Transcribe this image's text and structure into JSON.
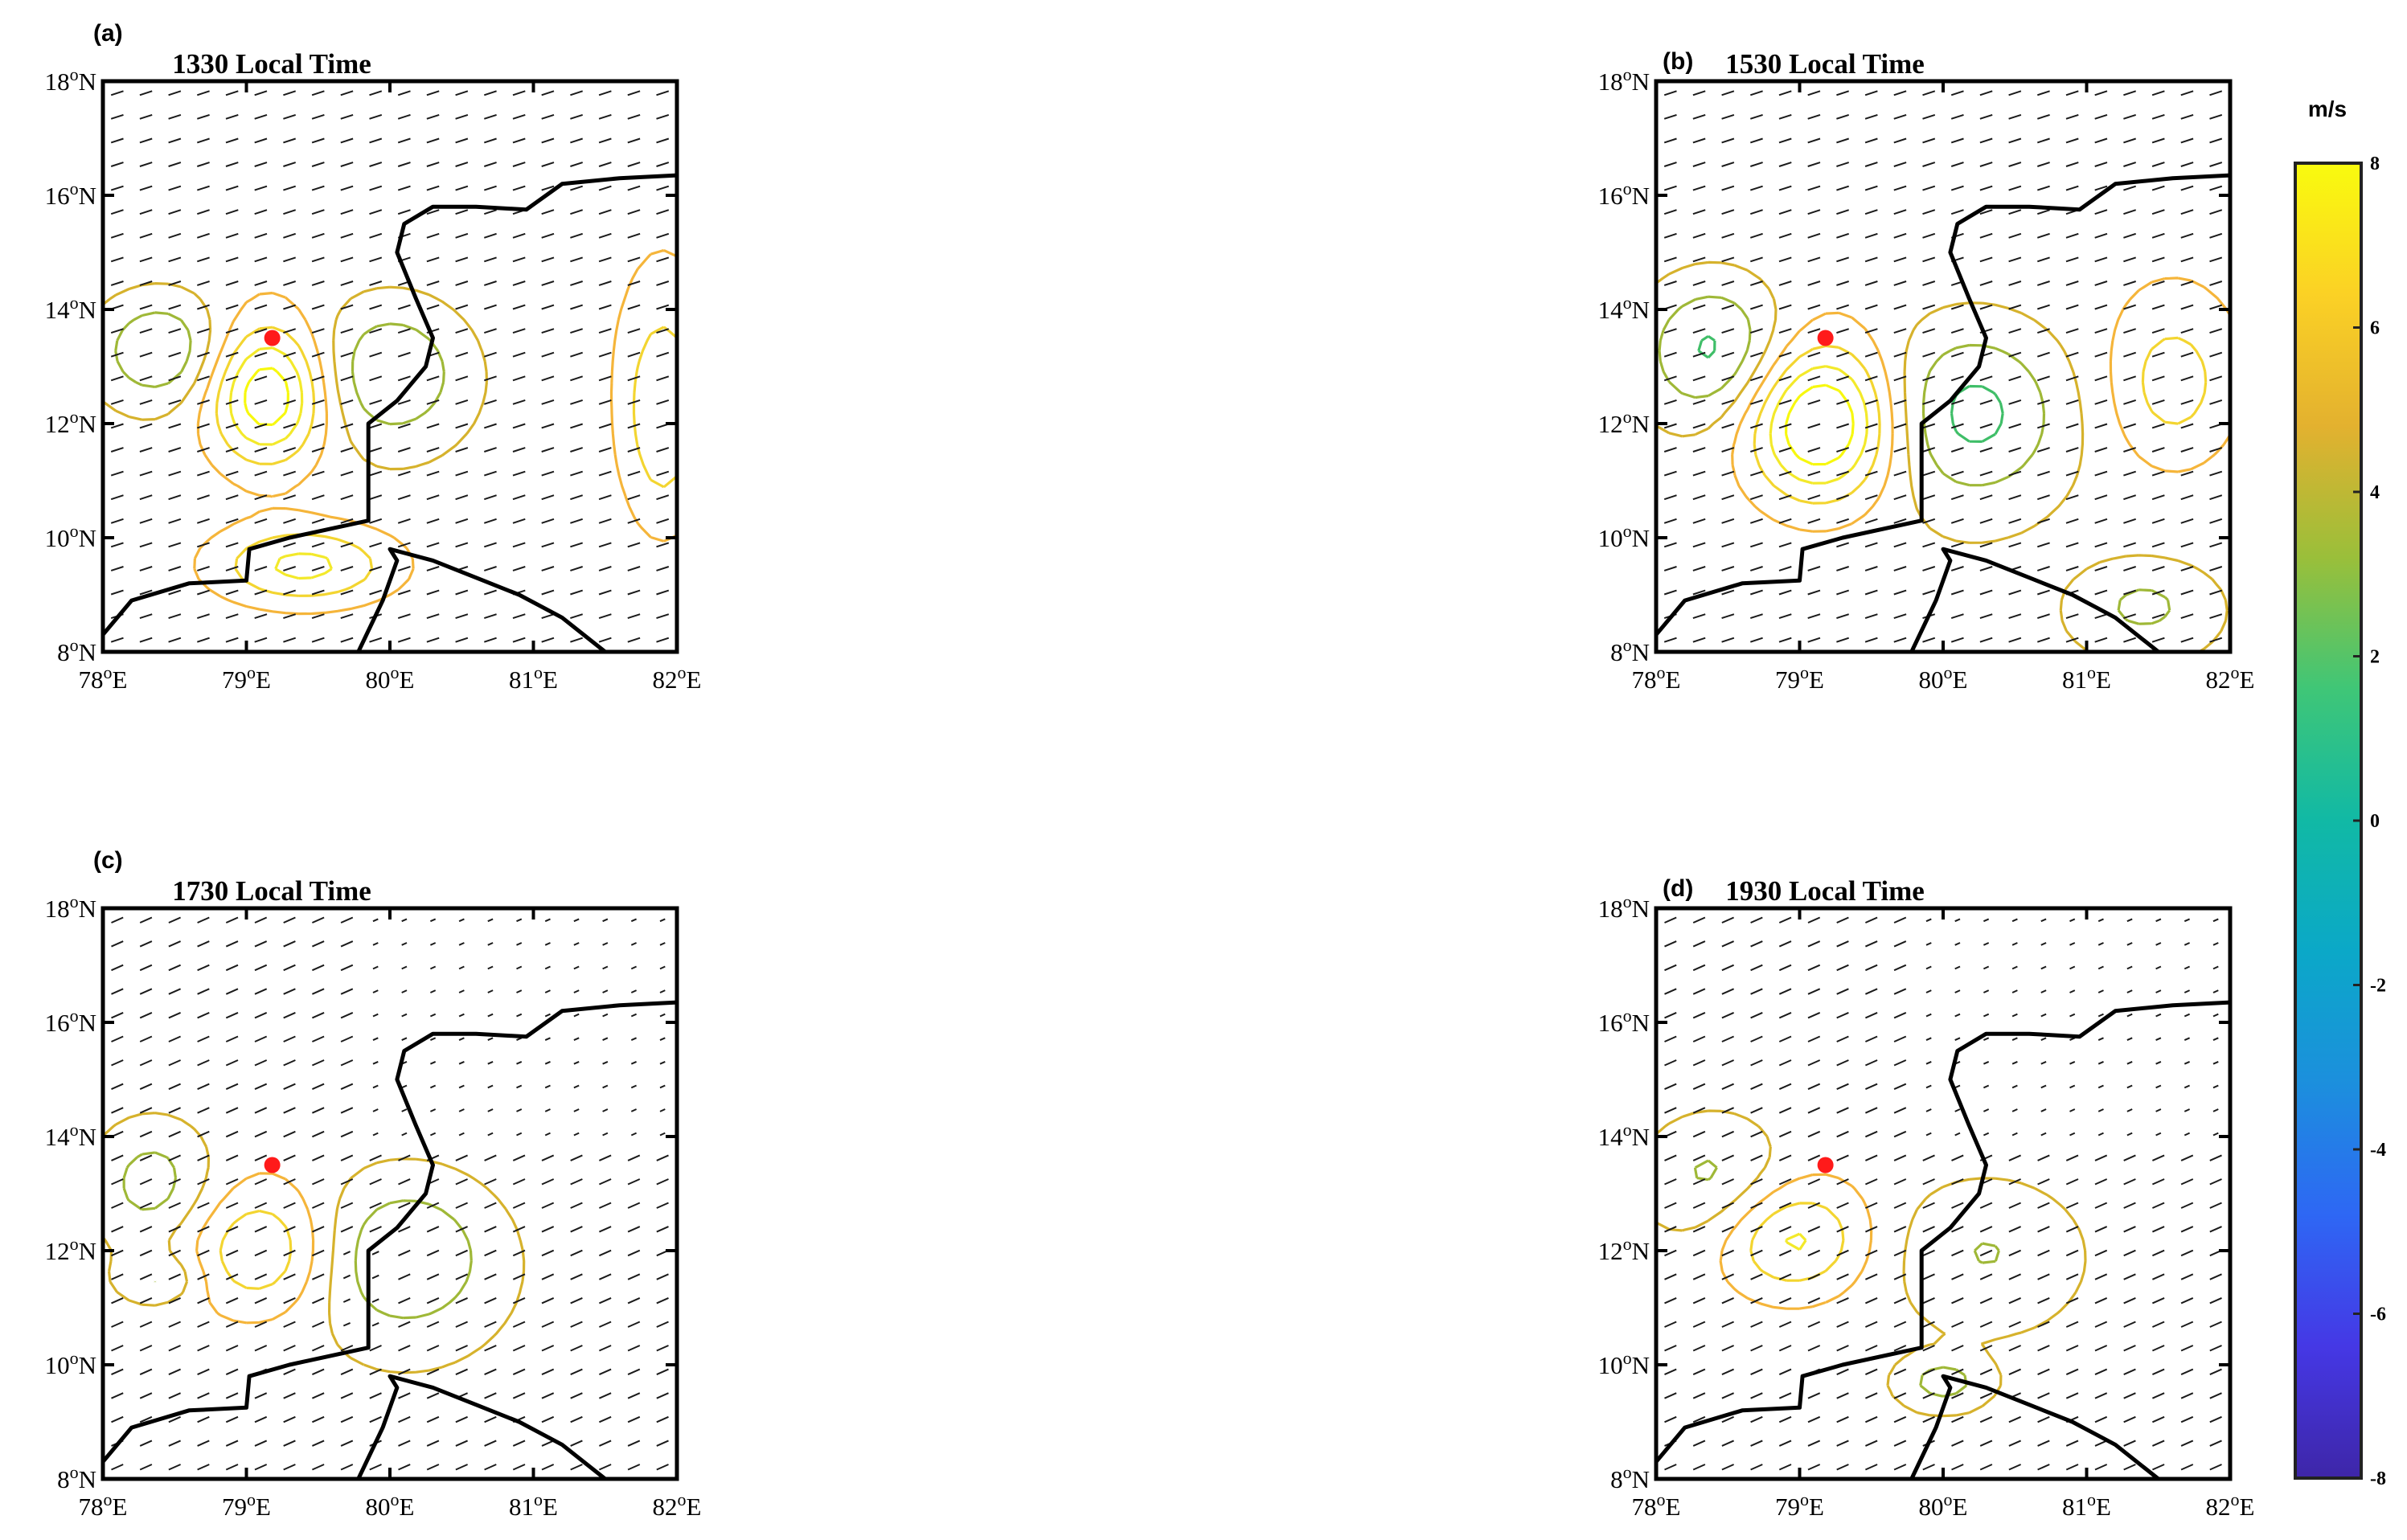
{
  "figure": {
    "colorbar": {
      "unit": "m/s",
      "ticks": [
        "8",
        "6",
        "4",
        "2",
        "0",
        "-2",
        "-4",
        "-6",
        "-8"
      ],
      "range": [
        -8,
        8
      ],
      "colormap": "parula"
    },
    "marker_color": "#ff1a1a",
    "coastline_color": "#000000"
  },
  "chart_data": [
    {
      "type": "contour",
      "panel_label": "(a)",
      "title": "1330 Local Time",
      "xticks": [
        "78",
        "79",
        "80",
        "81",
        "82"
      ],
      "yticks": [
        "8",
        "10",
        "12",
        "14",
        "16",
        "18"
      ],
      "xlim": [
        78,
        82
      ],
      "ylim": [
        8,
        18
      ],
      "marker": {
        "lon": 79.18,
        "lat": 13.5
      },
      "centers": [
        {
          "lon": 79.15,
          "lat": 12.5,
          "amp": 4.5,
          "sx": 0.28,
          "sy": 0.85
        },
        {
          "lon": 78.4,
          "lat": 13.3,
          "amp": -2.5,
          "sx": 0.32,
          "sy": 0.7
        },
        {
          "lon": 80.0,
          "lat": 12.9,
          "amp": -2.5,
          "sx": 0.38,
          "sy": 0.9
        },
        {
          "lon": 79.4,
          "lat": 9.5,
          "amp": 3.0,
          "sx": 0.45,
          "sy": 0.5
        },
        {
          "lon": 81.9,
          "lat": 12.2,
          "amp": 2.5,
          "sx": 0.2,
          "sy": 1.4
        }
      ]
    },
    {
      "type": "contour",
      "panel_label": "(b)",
      "title": "1530 Local Time",
      "xticks": [
        "78",
        "79",
        "80",
        "81",
        "82"
      ],
      "yticks": [
        "8",
        "10",
        "12",
        "14",
        "16",
        "18"
      ],
      "xlim": [
        78,
        82
      ],
      "ylim": [
        8,
        18
      ],
      "marker": {
        "lon": 79.18,
        "lat": 13.5
      },
      "centers": [
        {
          "lon": 79.15,
          "lat": 12.0,
          "amp": 5.0,
          "sx": 0.35,
          "sy": 0.95
        },
        {
          "lon": 78.4,
          "lat": 13.3,
          "amp": -2.8,
          "sx": 0.35,
          "sy": 0.9
        },
        {
          "lon": 80.2,
          "lat": 12.2,
          "amp": -2.8,
          "sx": 0.45,
          "sy": 1.1
        },
        {
          "lon": 81.4,
          "lat": 8.8,
          "amp": -1.5,
          "sx": 0.3,
          "sy": 0.5
        },
        {
          "lon": 81.6,
          "lat": 12.7,
          "amp": 2.0,
          "sx": 0.3,
          "sy": 1.0
        }
      ]
    },
    {
      "type": "contour",
      "panel_label": "(c)",
      "title": "1730 Local Time",
      "xticks": [
        "78",
        "79",
        "80",
        "81",
        "82"
      ],
      "yticks": [
        "8",
        "10",
        "12",
        "14",
        "16",
        "18"
      ],
      "xlim": [
        78,
        82
      ],
      "ylim": [
        8,
        18
      ],
      "marker": {
        "lon": 79.18,
        "lat": 13.5
      },
      "centers": [
        {
          "lon": 79.1,
          "lat": 12.0,
          "amp": 2.5,
          "sx": 0.35,
          "sy": 0.8
        },
        {
          "lon": 78.35,
          "lat": 13.2,
          "amp": -2.0,
          "sx": 0.3,
          "sy": 0.8
        },
        {
          "lon": 80.1,
          "lat": 11.9,
          "amp": -2.5,
          "sx": 0.45,
          "sy": 1.0
        },
        {
          "lon": 78.4,
          "lat": 11.5,
          "amp": -1.5,
          "sx": 0.2,
          "sy": 0.3
        }
      ]
    },
    {
      "type": "contour",
      "panel_label": "(d)",
      "title": "1930 Local Time",
      "xticks": [
        "78",
        "79",
        "80",
        "81",
        "82"
      ],
      "yticks": [
        "8",
        "10",
        "12",
        "14",
        "16",
        "18"
      ],
      "xlim": [
        78,
        82
      ],
      "ylim": [
        8,
        18
      ],
      "marker": {
        "lon": 79.18,
        "lat": 13.5
      },
      "centers": [
        {
          "lon": 78.95,
          "lat": 12.2,
          "amp": 2.8,
          "sx": 0.35,
          "sy": 0.7
        },
        {
          "lon": 78.4,
          "lat": 13.3,
          "amp": -1.8,
          "sx": 0.35,
          "sy": 0.8
        },
        {
          "lon": 80.3,
          "lat": 12.0,
          "amp": -1.5,
          "sx": 0.45,
          "sy": 0.9
        },
        {
          "lon": 80.0,
          "lat": 9.7,
          "amp": -1.8,
          "sx": 0.2,
          "sy": 0.3
        }
      ]
    }
  ]
}
